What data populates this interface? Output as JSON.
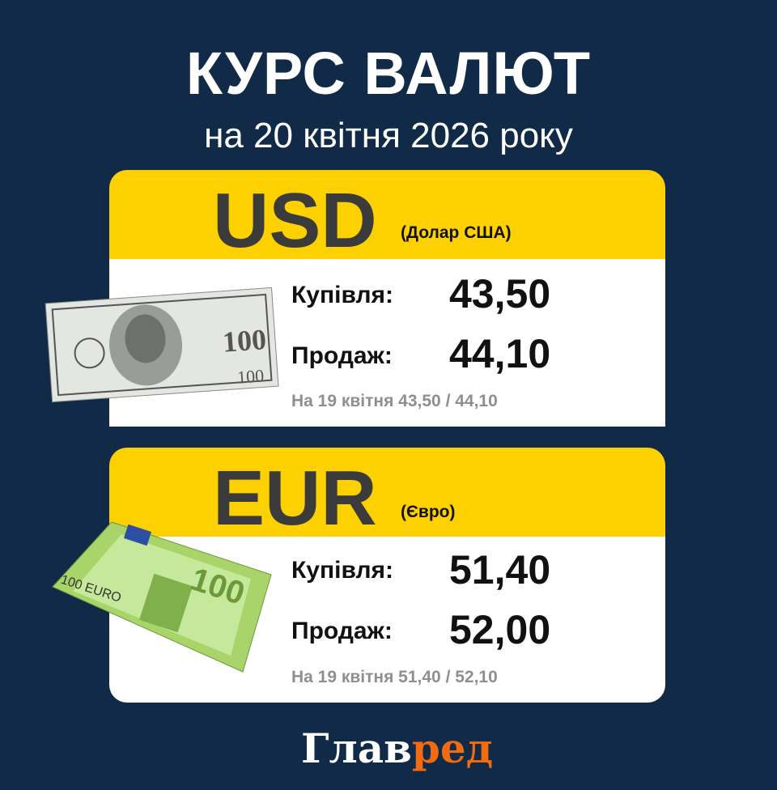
{
  "header": {
    "title": "КУРС ВАЛЮТ",
    "subtitle": "на 20 квітня 2026 року"
  },
  "colors": {
    "background": "#102a47",
    "accent": "#fdd000",
    "logo_accent": "#f26b10"
  },
  "currencies": [
    {
      "code": "USD",
      "name": "(Долар США)",
      "buy_label": "Купівля:",
      "buy": "43,50",
      "sell_label": "Продаж:",
      "sell": "44,10",
      "previous": "На 19 квітня 43,50 / 44,10",
      "icon": "usd-100-banknote"
    },
    {
      "code": "EUR",
      "name": "(Євро)",
      "buy_label": "Купівля:",
      "buy": "51,40",
      "sell_label": "Продаж:",
      "sell": "52,00",
      "previous": "На 19 квітня 51,40 / 52,10",
      "icon": "eur-100-banknote"
    }
  ],
  "logo": {
    "part1": "Глав",
    "part2": "ред"
  }
}
